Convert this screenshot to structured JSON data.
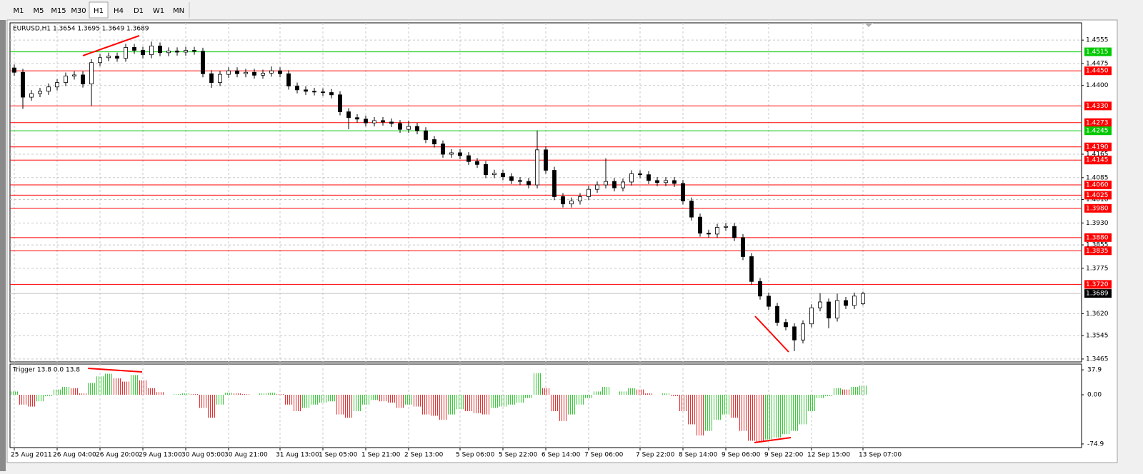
{
  "toolbar": {
    "timeframes": [
      "M1",
      "M5",
      "M15",
      "M30",
      "H1",
      "H4",
      "D1",
      "W1",
      "MN"
    ],
    "active": 4
  },
  "chart_data": [
    {
      "type": "candlestick",
      "title": "EURUSD,H1  1.3654 1.3695 1.3649 1.3689",
      "categories": [
        "25 Aug 2011",
        null,
        null,
        null,
        null,
        "26 Aug 04:00",
        null,
        null,
        null,
        null,
        "26 Aug 20:00",
        null,
        null,
        null,
        null,
        "29 Aug 13:00",
        null,
        null,
        null,
        null,
        "30 Aug 05:00",
        null,
        null,
        null,
        null,
        "30 Aug 21:00",
        null,
        null,
        null,
        null,
        null,
        "31 Aug 13:00",
        null,
        null,
        null,
        null,
        "1 Sep 05:00",
        null,
        null,
        null,
        null,
        "1 Sep 21:00",
        null,
        null,
        null,
        null,
        "2 Sep 13:00",
        null,
        null,
        null,
        null,
        null,
        "5 Sep 06:00",
        null,
        null,
        null,
        null,
        "5 Sep 22:00",
        null,
        null,
        null,
        null,
        "6 Sep 14:00",
        null,
        null,
        null,
        null,
        "7 Sep 06:00",
        null,
        null,
        null,
        null,
        null,
        "7 Sep 22:00",
        null,
        null,
        null,
        null,
        "8 Sep 14:00",
        null,
        null,
        null,
        null,
        "9 Sep 06:00",
        null,
        null,
        null,
        null,
        "9 Sep 22:00",
        null,
        null,
        null,
        null,
        "12 Sep 15:00",
        null,
        null,
        null,
        null,
        null,
        "13 Sep 07:00"
      ],
      "open": [
        1.446,
        1.4445,
        1.436,
        1.4372,
        1.438,
        1.4395,
        1.441,
        1.4432,
        1.4436,
        1.4405,
        1.4478,
        1.4495,
        1.45,
        1.4493,
        1.453,
        1.452,
        1.4505,
        1.4535,
        1.4512,
        1.4518,
        1.4514,
        1.452,
        1.4517,
        1.444,
        1.441,
        1.4438,
        1.445,
        1.444,
        1.4445,
        1.4435,
        1.4442,
        1.445,
        1.444,
        1.4398,
        1.4385,
        1.438,
        1.4378,
        1.4376,
        1.4368,
        1.431,
        1.429,
        1.4285,
        1.4272,
        1.428,
        1.4275,
        1.427,
        1.425,
        1.426,
        1.4245,
        1.4215,
        1.42,
        1.4165,
        1.417,
        1.416,
        1.414,
        1.413,
        1.4095,
        1.41,
        1.4088,
        1.4075,
        1.4072,
        1.406,
        1.418,
        1.411,
        1.402,
        1.3995,
        1.4005,
        1.402,
        1.4045,
        1.406,
        1.4072,
        1.405,
        1.407,
        1.4098,
        1.4095,
        1.4075,
        1.4068,
        1.4075,
        1.4065,
        1.4005,
        1.395,
        1.3895,
        1.3892,
        1.3915,
        1.3918,
        1.388,
        1.3815,
        1.373,
        1.368,
        1.3645,
        1.359,
        1.3575,
        1.353,
        1.3585,
        1.364,
        1.366,
        1.3605,
        1.3665,
        1.3648,
        1.3654
      ],
      "high": [
        1.4472,
        1.4457,
        1.4384,
        1.4392,
        1.4407,
        1.4422,
        1.4444,
        1.4448,
        1.4448,
        1.449,
        1.4507,
        1.4512,
        1.4512,
        1.4542,
        1.4542,
        1.4532,
        1.455,
        1.4547,
        1.453,
        1.453,
        1.4532,
        1.4532,
        1.4529,
        1.4452,
        1.445,
        1.4462,
        1.4462,
        1.4457,
        1.4457,
        1.4454,
        1.4465,
        1.4462,
        1.4452,
        1.441,
        1.4397,
        1.4392,
        1.439,
        1.4388,
        1.438,
        1.4322,
        1.4302,
        1.4297,
        1.4292,
        1.4292,
        1.4287,
        1.4282,
        1.428,
        1.4272,
        1.4257,
        1.4227,
        1.4212,
        1.4182,
        1.4182,
        1.4172,
        1.4152,
        1.4142,
        1.4112,
        1.4112,
        1.41,
        1.4087,
        1.4084,
        1.4246,
        1.4192,
        1.4122,
        1.4032,
        1.4017,
        1.4032,
        1.4057,
        1.4072,
        1.4151,
        1.4084,
        1.4082,
        1.411,
        1.411,
        1.4107,
        1.4087,
        1.4087,
        1.4087,
        1.4077,
        1.4017,
        1.3962,
        1.3907,
        1.3927,
        1.393,
        1.393,
        1.3892,
        1.3827,
        1.3742,
        1.3692,
        1.3657,
        1.3602,
        1.3587,
        1.3597,
        1.3652,
        1.369,
        1.3672,
        1.3688,
        1.3677,
        1.3692,
        1.3695
      ],
      "low": [
        1.4433,
        1.432,
        1.4348,
        1.436,
        1.4368,
        1.4383,
        1.4398,
        1.442,
        1.4393,
        1.4331,
        1.4466,
        1.4483,
        1.4481,
        1.4481,
        1.4508,
        1.4493,
        1.4493,
        1.45,
        1.45,
        1.4502,
        1.4502,
        1.4505,
        1.4428,
        1.4392,
        1.4398,
        1.4426,
        1.4428,
        1.4428,
        1.4423,
        1.4423,
        1.443,
        1.4428,
        1.4386,
        1.4373,
        1.4368,
        1.4366,
        1.4364,
        1.4356,
        1.4298,
        1.425,
        1.4273,
        1.426,
        1.426,
        1.4263,
        1.4258,
        1.4238,
        1.4238,
        1.4233,
        1.4203,
        1.4188,
        1.4153,
        1.4153,
        1.4148,
        1.4128,
        1.4118,
        1.4083,
        1.4083,
        1.4076,
        1.4063,
        1.406,
        1.4048,
        1.4048,
        1.4098,
        1.4008,
        1.3983,
        1.3983,
        1.3993,
        1.4008,
        1.4033,
        1.4048,
        1.4038,
        1.4038,
        1.4058,
        1.4083,
        1.4063,
        1.4056,
        1.4056,
        1.4053,
        1.3993,
        1.3938,
        1.3883,
        1.388,
        1.388,
        1.3903,
        1.3868,
        1.3803,
        1.3718,
        1.3668,
        1.3633,
        1.3578,
        1.3563,
        1.3492,
        1.3518,
        1.3573,
        1.3628,
        1.357,
        1.3593,
        1.3636,
        1.3636,
        1.3649
      ],
      "close": [
        1.4445,
        1.436,
        1.4372,
        1.438,
        1.4395,
        1.441,
        1.4432,
        1.4436,
        1.4405,
        1.4478,
        1.4495,
        1.45,
        1.4493,
        1.453,
        1.452,
        1.4505,
        1.4535,
        1.4512,
        1.4518,
        1.4514,
        1.452,
        1.4517,
        1.444,
        1.441,
        1.4438,
        1.445,
        1.444,
        1.4445,
        1.4435,
        1.4442,
        1.445,
        1.444,
        1.4398,
        1.4385,
        1.438,
        1.4378,
        1.4376,
        1.4368,
        1.431,
        1.429,
        1.4285,
        1.4272,
        1.428,
        1.4275,
        1.427,
        1.425,
        1.426,
        1.4245,
        1.4215,
        1.42,
        1.4165,
        1.417,
        1.416,
        1.414,
        1.413,
        1.4095,
        1.41,
        1.4088,
        1.4075,
        1.4072,
        1.406,
        1.418,
        1.411,
        1.402,
        1.3995,
        1.4005,
        1.402,
        1.4045,
        1.406,
        1.4072,
        1.405,
        1.407,
        1.4098,
        1.4095,
        1.4075,
        1.4068,
        1.4075,
        1.4065,
        1.4005,
        1.395,
        1.3895,
        1.3892,
        1.3915,
        1.3918,
        1.388,
        1.3815,
        1.373,
        1.368,
        1.3645,
        1.359,
        1.3575,
        1.353,
        1.3585,
        1.364,
        1.366,
        1.3605,
        1.3665,
        1.3648,
        1.368,
        1.3689
      ],
      "up_color": "#ffffff",
      "down_color": "#000000",
      "ylim": [
        1.3455,
        1.4614
      ],
      "yticks": [
        1.4555,
        1.4475,
        {
          "value": 1.44,
          "label": "1.4400"
        },
        1.4165,
        1.4085,
        {
          "value": 1.401,
          "label": "1.4010"
        },
        {
          "value": 1.393,
          "label": "1.3930"
        },
        1.3855,
        1.3775,
        {
          "value": 1.362,
          "label": "1.3620"
        },
        1.3545,
        1.3465
      ],
      "levels": [
        {
          "value": 1.4515,
          "label": "1.4515",
          "color": "#00c800"
        },
        {
          "value": 1.445,
          "label": "1.4450",
          "color": "#ff0000"
        },
        {
          "value": 1.433,
          "label": "1.4330",
          "color": "#ff0000"
        },
        {
          "value": 1.4273,
          "label": "1.4273",
          "color": "#ff0000"
        },
        {
          "value": 1.4245,
          "label": "1.4245",
          "color": "#00c800"
        },
        {
          "value": 1.419,
          "label": "1.4190",
          "color": "#ff0000"
        },
        {
          "value": 1.4145,
          "label": "1.4145",
          "color": "#ff0000"
        },
        {
          "value": 1.406,
          "label": "1.4060",
          "color": "#ff0000"
        },
        {
          "value": 1.4025,
          "label": "1.4025",
          "color": "#ff0000"
        },
        {
          "value": 1.398,
          "label": "1.3980",
          "color": "#ff0000"
        },
        {
          "value": 1.388,
          "label": "1.3880",
          "color": "#ff0000"
        },
        {
          "value": 1.3835,
          "label": "1.3835",
          "color": "#ff0000"
        },
        {
          "value": 1.372,
          "label": "1.3720",
          "color": "#ff0000"
        }
      ],
      "price_line": {
        "value": 1.3689,
        "color": "#c0c0c0"
      },
      "grid": true
    },
    {
      "type": "histogram",
      "title": "Trigger 13.8 0.0 13.8",
      "values": [
        5,
        -15,
        -18,
        -10,
        -2,
        8,
        12,
        10,
        2,
        18,
        28,
        32,
        25,
        20,
        30,
        22,
        10,
        4,
        0,
        1,
        2,
        1,
        -20,
        -35,
        -15,
        3,
        2,
        1,
        0,
        2,
        3,
        1,
        -15,
        -25,
        -20,
        -15,
        -12,
        -10,
        -30,
        -35,
        -25,
        -15,
        -8,
        -10,
        -12,
        -20,
        -15,
        -18,
        -30,
        -32,
        -38,
        -30,
        -22,
        -25,
        -28,
        -30,
        -20,
        -18,
        -15,
        -12,
        -5,
        33,
        10,
        -25,
        -40,
        -30,
        -15,
        -5,
        5,
        12,
        0,
        5,
        10,
        8,
        2,
        0,
        2,
        -2,
        -25,
        -45,
        -62,
        -55,
        -38,
        -30,
        -35,
        -55,
        -70,
        -72,
        -68,
        -65,
        -60,
        -55,
        -45,
        -25,
        -5,
        -2,
        10,
        8,
        12,
        13.8
      ],
      "up_color": "#39c939",
      "down_color": "#e03030",
      "ylim": [
        -80.4,
        46.7
      ],
      "yticks": [
        37.9,
        {
          "value": 0,
          "label": "0.00"
        },
        -74.9
      ]
    }
  ]
}
